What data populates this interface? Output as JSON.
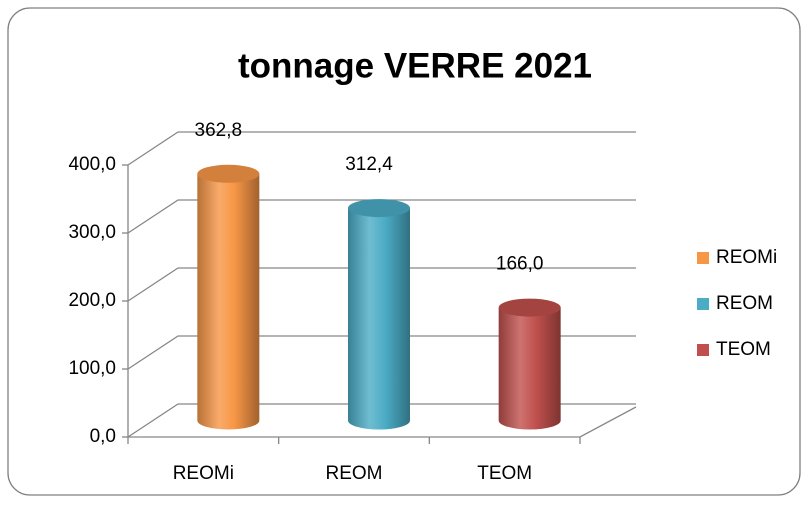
{
  "chart_data": {
    "type": "bar",
    "title": "tonnage VERRE 2021",
    "categories": [
      "REOMi",
      "REOM",
      "TEOM"
    ],
    "values": [
      362.8,
      312.4,
      166.0
    ],
    "value_labels": [
      "362,8",
      "312,4",
      "166,0"
    ],
    "colors": [
      "#f79646",
      "#4bacc6",
      "#c0504d"
    ],
    "ylim": [
      0,
      400
    ],
    "yticks": [
      {
        "value": 0,
        "label": "0,0"
      },
      {
        "value": 100,
        "label": "100,0"
      },
      {
        "value": 200,
        "label": "200,0"
      },
      {
        "value": 300,
        "label": "300,0"
      },
      {
        "value": 400,
        "label": "400,0"
      }
    ],
    "grid": true,
    "legend": "right"
  }
}
